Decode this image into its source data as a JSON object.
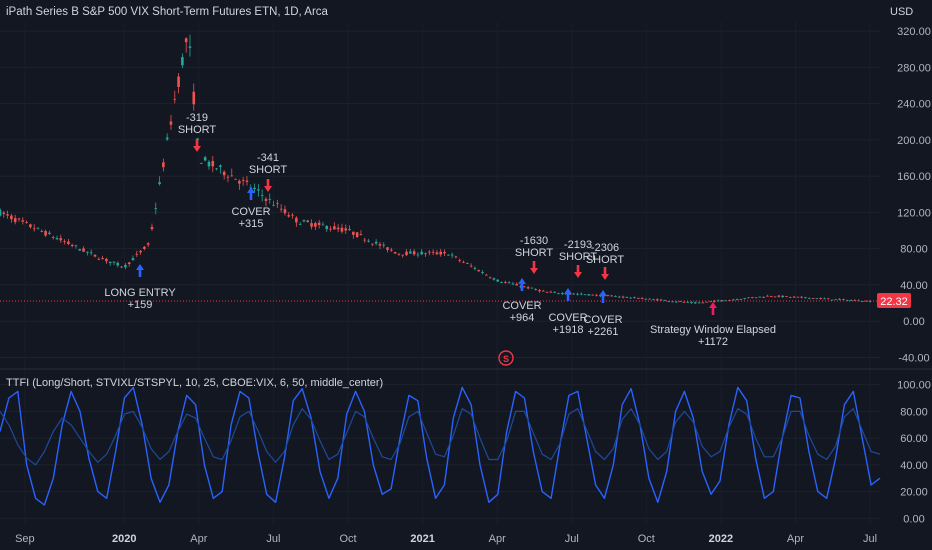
{
  "header": {
    "title": "iPath Series B S&P 500 VIX Short-Term Futures ETN, 1D, Arca",
    "currency": "USD"
  },
  "price_badge": {
    "value": "22.32",
    "color": "#f23645"
  },
  "indicator": {
    "label": "TTFI (Long/Short, STVIXL/STSPYL, 10, 25, CBOE:VIX, 6, 50, middle_center)"
  },
  "colors": {
    "background": "#131722",
    "up": "#26a69a",
    "down": "#ef5350",
    "long_marker": "#2962ff",
    "short_marker": "#f23645",
    "indicator_line": "#2962ff",
    "indicator_line_2": "#1e4a9a"
  },
  "s_badge": "S",
  "chart_data": [
    {
      "type": "candlestick",
      "title": "iPath Series B S&P 500 VIX Short-Term Futures ETN, 1D, Arca",
      "ylabel": "USD",
      "ylim": [
        -45,
        330
      ],
      "yticks": [
        "320.00",
        "280.00",
        "240.00",
        "200.00",
        "160.00",
        "120.00",
        "80.00",
        "40.00",
        "0.00",
        "-40.00"
      ],
      "xticks": [
        "Sep",
        "2020",
        "Apr",
        "Jul",
        "Oct",
        "2021",
        "Apr",
        "Jul",
        "Oct",
        "2022",
        "Apr",
        "Jul"
      ],
      "x_range": [
        "2019-08",
        "2022-07"
      ],
      "last_price": 22.32,
      "approx_close_path": [
        {
          "date": "2019-08",
          "value": 120
        },
        {
          "date": "2019-10",
          "value": 95
        },
        {
          "date": "2019-12",
          "value": 70
        },
        {
          "date": "2020-01",
          "value": 60
        },
        {
          "date": "2020-02",
          "value": 85
        },
        {
          "date": "2020-03",
          "value": 240
        },
        {
          "date": "2020-03-18",
          "value": 320
        },
        {
          "date": "2020-04",
          "value": 180
        },
        {
          "date": "2020-06",
          "value": 150
        },
        {
          "date": "2020-08",
          "value": 110
        },
        {
          "date": "2020-10",
          "value": 100
        },
        {
          "date": "2020-12",
          "value": 75
        },
        {
          "date": "2021-02",
          "value": 75
        },
        {
          "date": "2021-04",
          "value": 45
        },
        {
          "date": "2021-06",
          "value": 32
        },
        {
          "date": "2021-09",
          "value": 27
        },
        {
          "date": "2021-12",
          "value": 20
        },
        {
          "date": "2022-03",
          "value": 28
        },
        {
          "date": "2022-07",
          "value": 22
        }
      ],
      "annotations": [
        {
          "lines": [
            "LONG ENTRY",
            "+159"
          ],
          "marker": "up",
          "color": "#2962ff"
        },
        {
          "lines": [
            "-319",
            "SHORT"
          ],
          "marker": "down",
          "color": "#f23645"
        },
        {
          "lines": [
            "-341",
            "SHORT"
          ],
          "marker": "down",
          "color": "#f23645"
        },
        {
          "lines": [
            "COVER",
            "+315"
          ],
          "marker": "up",
          "color": "#2962ff"
        },
        {
          "lines": [
            "-1630",
            "SHORT"
          ],
          "marker": "down",
          "color": "#f23645"
        },
        {
          "lines": [
            "COVER",
            "+964"
          ],
          "marker": "up",
          "color": "#2962ff"
        },
        {
          "lines": [
            "-2193",
            "SHORT"
          ],
          "marker": "down",
          "color": "#f23645"
        },
        {
          "lines": [
            "COVER",
            "+1918"
          ],
          "marker": "up",
          "color": "#2962ff"
        },
        {
          "lines": [
            "-2306",
            "SHORT"
          ],
          "marker": "down",
          "color": "#f23645"
        },
        {
          "lines": [
            "COVER",
            "+2261"
          ],
          "marker": "up",
          "color": "#2962ff"
        },
        {
          "lines": [
            "Strategy Window Elapsed",
            "+1172"
          ],
          "marker": "up",
          "color": "#e91e63"
        }
      ]
    },
    {
      "type": "line",
      "title": "TTFI (Long/Short, STVIXL/STSPYL, 10, 25, CBOE:VIX, 6, 50, middle_center)",
      "ylim": [
        -5,
        105
      ],
      "yticks": [
        "100.00",
        "80.00",
        "60.00",
        "40.00",
        "20.00",
        "0.00"
      ],
      "series": [
        {
          "values": [
            65,
            90,
            95,
            40,
            15,
            10,
            30,
            70,
            95,
            80,
            45,
            20,
            15,
            50,
            90,
            98,
            70,
            30,
            12,
            25,
            65,
            92,
            85,
            40,
            15,
            20,
            70,
            95,
            90,
            50,
            18,
            12,
            45,
            88,
            97,
            75,
            35,
            15,
            30,
            78,
            95,
            80,
            40,
            18,
            22,
            60,
            92,
            88,
            45,
            15,
            25,
            75,
            98,
            85,
            40,
            12,
            18,
            65,
            95,
            90,
            50,
            20,
            15,
            55,
            92,
            95,
            60,
            25,
            15,
            40,
            85,
            97,
            70,
            30,
            12,
            35,
            80,
            95,
            75,
            35,
            18,
            28,
            70,
            98,
            88,
            45,
            15,
            20,
            60,
            92,
            90,
            50,
            20,
            15,
            45,
            85,
            95,
            60,
            25,
            30
          ]
        },
        {
          "values": [
            80,
            70,
            55,
            45,
            40,
            50,
            65,
            75,
            70,
            60,
            50,
            42,
            48,
            62,
            78,
            80,
            68,
            52,
            44,
            50,
            65,
            78,
            75,
            60,
            46,
            44,
            58,
            76,
            80,
            66,
            50,
            42,
            50,
            70,
            82,
            74,
            58,
            44,
            48,
            64,
            80,
            76,
            60,
            46,
            44,
            56,
            76,
            80,
            64,
            48,
            46,
            62,
            82,
            78,
            60,
            44,
            44,
            58,
            80,
            80,
            64,
            48,
            44,
            56,
            78,
            82,
            66,
            50,
            44,
            52,
            74,
            82,
            70,
            52,
            44,
            50,
            72,
            80,
            72,
            54,
            46,
            50,
            68,
            82,
            78,
            60,
            46,
            46,
            60,
            80,
            80,
            62,
            48,
            44,
            54,
            76,
            82,
            66,
            50,
            48
          ]
        }
      ]
    }
  ]
}
